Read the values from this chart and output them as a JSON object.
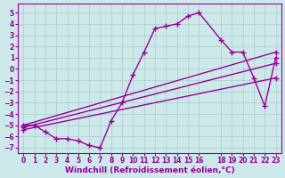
{
  "background_color": "#cce8e8",
  "grid_color": "#aacccc",
  "line_color": "#990099",
  "marker": "+",
  "markersize": 5,
  "linewidth": 1.0,
  "markeredgewidth": 1.0,
  "xlabel": "Windchill (Refroidissement éolien,°C)",
  "xlabel_fontsize": 6.5,
  "tick_fontsize": 5.5,
  "xlim": [
    -0.5,
    23.5
  ],
  "ylim": [
    -7.5,
    5.8
  ],
  "xticks": [
    0,
    1,
    2,
    3,
    4,
    5,
    6,
    7,
    8,
    9,
    10,
    11,
    12,
    13,
    14,
    15,
    16,
    18,
    19,
    20,
    21,
    22,
    23
  ],
  "yticks": [
    -7,
    -6,
    -5,
    -4,
    -3,
    -2,
    -1,
    0,
    1,
    2,
    3,
    4,
    5
  ],
  "series": [
    [
      0,
      -5.0
    ],
    [
      1,
      -5.0
    ],
    [
      2,
      -5.6
    ],
    [
      3,
      -6.2
    ],
    [
      4,
      -6.2
    ],
    [
      5,
      -6.4
    ],
    [
      6,
      -6.8
    ],
    [
      7,
      -7.0
    ],
    [
      8,
      -4.6
    ],
    [
      9,
      -3.0
    ],
    [
      10,
      -0.5
    ],
    [
      11,
      1.5
    ],
    [
      12,
      3.6
    ],
    [
      13,
      3.8
    ],
    [
      14,
      4.0
    ],
    [
      15,
      4.7
    ],
    [
      16,
      5.0
    ],
    [
      18,
      2.6
    ],
    [
      19,
      1.5
    ],
    [
      20,
      1.5
    ],
    [
      21,
      -0.8
    ],
    [
      22,
      -3.3
    ],
    [
      23,
      1.0
    ]
  ],
  "line2": [
    [
      0,
      -5.0
    ],
    [
      23,
      1.5
    ]
  ],
  "line3": [
    [
      0,
      -5.2
    ],
    [
      23,
      0.5
    ]
  ],
  "line4": [
    [
      0,
      -5.4
    ],
    [
      23,
      -0.8
    ]
  ]
}
